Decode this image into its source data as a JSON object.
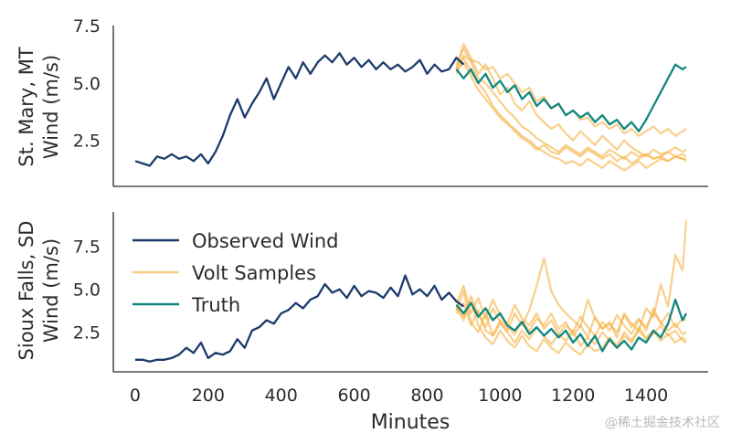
{
  "watermark": "@稀土掘金技术社区",
  "chart_data": [
    {
      "type": "line",
      "panel": "top",
      "ylabel_line1": "St. Mary, MT",
      "ylabel_line2": "Wind (m/s)",
      "xlim": [
        -60,
        1570
      ],
      "ylim": [
        0.5,
        7.5
      ],
      "yticks": [
        2.5,
        5.0,
        7.5
      ],
      "ytick_labels": [
        "2.5",
        "5.0",
        "7.5"
      ],
      "colors": {
        "observed": "#1b3a6b",
        "samples": "#f5b041",
        "truth": "#12877e"
      },
      "observed": {
        "name": "Observed Wind",
        "x": [
          0,
          20,
          40,
          60,
          80,
          100,
          120,
          140,
          160,
          180,
          200,
          220,
          240,
          260,
          280,
          300,
          320,
          340,
          360,
          380,
          400,
          420,
          440,
          460,
          480,
          500,
          520,
          540,
          560,
          580,
          600,
          620,
          640,
          660,
          680,
          700,
          720,
          740,
          760,
          780,
          800,
          820,
          840,
          860,
          880,
          900
        ],
        "y": [
          1.6,
          1.5,
          1.4,
          1.8,
          1.7,
          1.9,
          1.7,
          1.8,
          1.6,
          1.9,
          1.5,
          2.0,
          2.7,
          3.6,
          4.3,
          3.5,
          4.1,
          4.6,
          5.2,
          4.3,
          5.0,
          5.7,
          5.2,
          5.9,
          5.4,
          5.9,
          6.2,
          5.9,
          6.3,
          5.8,
          6.1,
          5.7,
          6.0,
          5.6,
          5.9,
          5.6,
          5.8,
          5.5,
          5.7,
          6.0,
          5.4,
          5.8,
          5.5,
          5.6,
          6.1,
          5.8
        ]
      },
      "samples": [
        {
          "x": [
            880,
            900,
            920,
            940,
            960,
            980,
            1000,
            1020,
            1040,
            1060,
            1080,
            1100,
            1120,
            1140,
            1160,
            1180,
            1200,
            1220,
            1240,
            1260,
            1280,
            1300,
            1320,
            1340,
            1360,
            1380,
            1400,
            1420,
            1440,
            1460,
            1480,
            1500,
            1510
          ],
          "y": [
            5.6,
            6.7,
            6.1,
            5.4,
            5.8,
            5.2,
            4.5,
            4.8,
            4.1,
            3.8,
            4.2,
            3.6,
            3.3,
            3.0,
            3.2,
            2.8,
            2.5,
            2.9,
            2.6,
            2.3,
            2.7,
            2.4,
            2.1,
            2.5,
            2.2,
            2.0,
            1.8,
            2.1,
            1.9,
            2.0,
            2.2,
            2.0,
            2.1
          ]
        },
        {
          "x": [
            880,
            900,
            920,
            940,
            960,
            980,
            1000,
            1020,
            1040,
            1060,
            1080,
            1100,
            1120,
            1140,
            1160,
            1180,
            1200,
            1220,
            1240,
            1260,
            1280,
            1300,
            1320,
            1340,
            1360,
            1380,
            1400,
            1420,
            1440,
            1460,
            1480,
            1500,
            1510
          ],
          "y": [
            5.4,
            6.2,
            6.0,
            5.9,
            5.6,
            5.7,
            5.2,
            5.4,
            5.0,
            4.6,
            4.8,
            4.2,
            4.4,
            3.9,
            4.1,
            3.6,
            3.8,
            3.4,
            3.5,
            3.1,
            3.3,
            3.0,
            3.2,
            2.8,
            3.0,
            2.7,
            2.9,
            3.1,
            2.8,
            3.0,
            2.7,
            2.9,
            3.0
          ]
        },
        {
          "x": [
            880,
            900,
            920,
            940,
            960,
            980,
            1000,
            1020,
            1040,
            1060,
            1080,
            1100,
            1120,
            1140,
            1160,
            1180,
            1200,
            1220,
            1240,
            1260,
            1280,
            1300,
            1320,
            1340,
            1360,
            1380,
            1400,
            1420,
            1440,
            1460,
            1480,
            1500,
            1510
          ],
          "y": [
            5.8,
            6.5,
            5.9,
            5.2,
            5.0,
            4.6,
            4.2,
            3.8,
            3.5,
            3.1,
            2.9,
            2.6,
            2.4,
            2.2,
            2.0,
            2.3,
            2.1,
            1.9,
            2.2,
            2.0,
            1.8,
            2.1,
            1.9,
            1.7,
            2.0,
            1.8,
            1.9,
            1.7,
            1.8,
            1.6,
            1.8,
            1.7,
            1.7
          ]
        },
        {
          "x": [
            880,
            900,
            920,
            940,
            960,
            980,
            1000,
            1020,
            1040,
            1060,
            1080,
            1100,
            1120,
            1140,
            1160,
            1180,
            1200,
            1220,
            1240,
            1260,
            1280,
            1300,
            1320,
            1340,
            1360,
            1380,
            1400,
            1420,
            1440,
            1460,
            1480,
            1500,
            1510
          ],
          "y": [
            5.5,
            5.9,
            5.3,
            4.7,
            4.3,
            3.9,
            3.5,
            3.2,
            3.0,
            2.7,
            2.5,
            2.2,
            2.0,
            1.8,
            1.7,
            1.5,
            1.6,
            1.4,
            1.7,
            1.5,
            1.3,
            1.6,
            1.4,
            1.2,
            1.4,
            1.6,
            1.3,
            1.5,
            1.7,
            1.6,
            1.8,
            1.7,
            1.6
          ]
        },
        {
          "x": [
            880,
            900,
            920,
            940,
            960,
            980,
            1000,
            1020,
            1040,
            1060,
            1080,
            1100,
            1120,
            1140,
            1160,
            1180,
            1200,
            1220,
            1240,
            1260,
            1280,
            1300,
            1320,
            1340,
            1360,
            1380,
            1400,
            1420,
            1440,
            1460,
            1480,
            1500,
            1510
          ],
          "y": [
            5.7,
            6.1,
            5.5,
            5.0,
            4.6,
            4.0,
            3.6,
            3.3,
            2.9,
            2.6,
            2.4,
            2.1,
            2.3,
            2.0,
            1.9,
            2.2,
            2.0,
            1.8,
            2.1,
            1.9,
            1.7,
            1.9,
            1.6,
            1.8,
            1.5,
            1.7,
            1.9,
            1.7,
            1.8,
            2.0,
            1.8,
            1.9,
            1.8
          ]
        }
      ],
      "truth": {
        "name": "Truth",
        "x": [
          880,
          900,
          920,
          940,
          960,
          980,
          1000,
          1020,
          1040,
          1060,
          1080,
          1100,
          1120,
          1140,
          1160,
          1180,
          1200,
          1220,
          1240,
          1260,
          1280,
          1300,
          1320,
          1340,
          1360,
          1380,
          1400,
          1420,
          1440,
          1460,
          1480,
          1500,
          1510
        ],
        "y": [
          5.6,
          5.2,
          5.6,
          5.0,
          5.4,
          4.8,
          5.1,
          4.6,
          4.9,
          4.3,
          4.6,
          4.0,
          4.3,
          3.9,
          4.1,
          3.6,
          3.8,
          3.5,
          3.7,
          3.3,
          3.6,
          3.2,
          3.4,
          3.0,
          3.3,
          2.9,
          3.4,
          4.0,
          4.6,
          5.2,
          5.8,
          5.6,
          5.7
        ]
      }
    },
    {
      "type": "line",
      "panel": "bottom",
      "ylabel_line1": "Sioux Falls, SD",
      "ylabel_line2": "Wind (m/s)",
      "xlabel": "Minutes",
      "xlim": [
        -60,
        1570
      ],
      "ylim": [
        0.2,
        9.5
      ],
      "xticks": [
        0,
        200,
        400,
        600,
        800,
        1000,
        1200,
        1400
      ],
      "xtick_labels": [
        "0",
        "200",
        "400",
        "600",
        "800",
        "1000",
        "1200",
        "1400"
      ],
      "yticks": [
        2.5,
        5.0,
        7.5
      ],
      "ytick_labels": [
        "2.5",
        "5.0",
        "7.5"
      ],
      "colors": {
        "observed": "#1b3a6b",
        "samples": "#f5b041",
        "truth": "#12877e"
      },
      "legend": {
        "location": "upper-left",
        "entries": [
          {
            "label": "Observed Wind",
            "color": "#1b3a6b"
          },
          {
            "label": "Volt Samples",
            "color": "#f5b041"
          },
          {
            "label": "Truth",
            "color": "#12877e"
          }
        ]
      },
      "observed": {
        "name": "Observed Wind",
        "x": [
          0,
          20,
          40,
          60,
          80,
          100,
          120,
          140,
          160,
          180,
          200,
          220,
          240,
          260,
          280,
          300,
          320,
          340,
          360,
          380,
          400,
          420,
          440,
          460,
          480,
          500,
          520,
          540,
          560,
          580,
          600,
          620,
          640,
          660,
          680,
          700,
          720,
          740,
          760,
          780,
          800,
          820,
          840,
          860,
          880,
          900
        ],
        "y": [
          0.9,
          0.9,
          0.8,
          0.9,
          0.9,
          1.0,
          1.2,
          1.6,
          1.3,
          1.9,
          1.0,
          1.3,
          1.2,
          1.4,
          2.1,
          1.6,
          2.6,
          2.8,
          3.2,
          3.0,
          3.6,
          3.8,
          4.2,
          3.9,
          4.4,
          4.6,
          5.3,
          4.8,
          5.0,
          4.5,
          5.2,
          4.6,
          4.9,
          4.8,
          4.5,
          5.1,
          4.6,
          5.8,
          4.7,
          5.0,
          4.6,
          5.2,
          4.4,
          4.8,
          4.3,
          4.0
        ]
      },
      "samples": [
        {
          "x": [
            880,
            900,
            920,
            940,
            960,
            980,
            1000,
            1020,
            1040,
            1060,
            1080,
            1100,
            1120,
            1140,
            1160,
            1180,
            1200,
            1220,
            1240,
            1260,
            1280,
            1300,
            1320,
            1340,
            1360,
            1380,
            1400,
            1420,
            1440,
            1460,
            1480,
            1500,
            1510
          ],
          "y": [
            4.0,
            3.4,
            4.6,
            3.5,
            2.8,
            3.9,
            3.1,
            2.6,
            3.6,
            2.9,
            3.8,
            5.2,
            6.8,
            4.9,
            4.1,
            3.6,
            3.2,
            2.8,
            4.4,
            3.3,
            2.7,
            3.1,
            2.2,
            3.6,
            3.0,
            2.6,
            3.9,
            3.4,
            5.3,
            4.0,
            7.0,
            6.1,
            9.0
          ]
        },
        {
          "x": [
            880,
            900,
            920,
            940,
            960,
            980,
            1000,
            1020,
            1040,
            1060,
            1080,
            1100,
            1120,
            1140,
            1160,
            1180,
            1200,
            1220,
            1240,
            1260,
            1280,
            1300,
            1320,
            1340,
            1360,
            1380,
            1400,
            1420,
            1440,
            1460,
            1480,
            1500,
            1510
          ],
          "y": [
            3.8,
            4.9,
            3.1,
            2.5,
            3.6,
            2.3,
            3.2,
            2.8,
            2.4,
            3.1,
            2.6,
            3.3,
            2.9,
            3.6,
            2.7,
            3.1,
            2.3,
            2.9,
            2.2,
            3.4,
            2.7,
            3.0,
            2.5,
            3.5,
            2.8,
            3.3,
            2.6,
            3.9,
            3.0,
            3.6,
            2.8,
            3.3,
            3.2
          ]
        },
        {
          "x": [
            880,
            900,
            920,
            940,
            960,
            980,
            1000,
            1020,
            1040,
            1060,
            1080,
            1100,
            1120,
            1140,
            1160,
            1180,
            1200,
            1220,
            1240,
            1260,
            1280,
            1300,
            1320,
            1340,
            1360,
            1380,
            1400,
            1420,
            1440,
            1460,
            1480,
            1500,
            1510
          ],
          "y": [
            3.6,
            4.2,
            2.9,
            3.8,
            2.6,
            2.3,
            3.0,
            2.5,
            1.9,
            2.6,
            2.1,
            2.8,
            2.3,
            1.8,
            2.4,
            2.0,
            2.6,
            1.7,
            2.2,
            1.8,
            2.5,
            2.0,
            1.6,
            2.3,
            1.9,
            2.6,
            2.1,
            2.4,
            2.9,
            2.3,
            2.6,
            2.0,
            1.9
          ]
        },
        {
          "x": [
            880,
            900,
            920,
            940,
            960,
            980,
            1000,
            1020,
            1040,
            1060,
            1080,
            1100,
            1120,
            1140,
            1160,
            1180,
            1200,
            1220,
            1240,
            1260,
            1280,
            1300,
            1320,
            1340,
            1360,
            1380,
            1400,
            1420,
            1440,
            1460,
            1480,
            1500,
            1510
          ],
          "y": [
            4.2,
            5.2,
            3.6,
            4.5,
            3.3,
            4.4,
            3.5,
            3.0,
            4.1,
            3.3,
            2.9,
            3.6,
            2.7,
            3.2,
            2.4,
            2.9,
            2.5,
            3.4,
            2.8,
            2.3,
            3.1,
            2.6,
            3.5,
            2.9,
            2.4,
            3.2,
            2.8,
            3.6,
            3.1,
            2.6,
            3.0,
            2.4,
            2.5
          ]
        },
        {
          "x": [
            880,
            900,
            920,
            940,
            960,
            980,
            1000,
            1020,
            1040,
            1060,
            1080,
            1100,
            1120,
            1140,
            1160,
            1180,
            1200,
            1220,
            1240,
            1260,
            1280,
            1300,
            1320,
            1340,
            1360,
            1380,
            1400,
            1420,
            1440,
            1460,
            1480,
            1500,
            1510
          ],
          "y": [
            3.9,
            3.2,
            4.3,
            2.9,
            2.2,
            1.8,
            2.6,
            2.0,
            1.6,
            2.3,
            1.7,
            1.4,
            2.1,
            1.6,
            1.3,
            1.9,
            1.5,
            1.2,
            1.8,
            1.4,
            1.6,
            2.2,
            1.7,
            2.5,
            2.0,
            2.8,
            2.2,
            2.6,
            2.0,
            2.4,
            1.9,
            2.2,
            2.0
          ]
        }
      ],
      "truth": {
        "name": "Truth",
        "x": [
          880,
          900,
          920,
          940,
          960,
          980,
          1000,
          1020,
          1040,
          1060,
          1080,
          1100,
          1120,
          1140,
          1160,
          1180,
          1200,
          1220,
          1240,
          1260,
          1280,
          1300,
          1320,
          1340,
          1360,
          1380,
          1400,
          1420,
          1440,
          1460,
          1480,
          1500,
          1510
        ],
        "y": [
          4.1,
          3.6,
          4.2,
          3.4,
          3.9,
          3.2,
          3.6,
          2.9,
          2.6,
          3.1,
          2.4,
          2.8,
          2.3,
          2.7,
          2.2,
          2.6,
          1.9,
          2.4,
          1.7,
          2.3,
          1.4,
          2.1,
          1.6,
          2.0,
          1.5,
          2.2,
          1.9,
          2.6,
          2.2,
          3.0,
          4.4,
          3.2,
          3.6
        ]
      }
    }
  ]
}
